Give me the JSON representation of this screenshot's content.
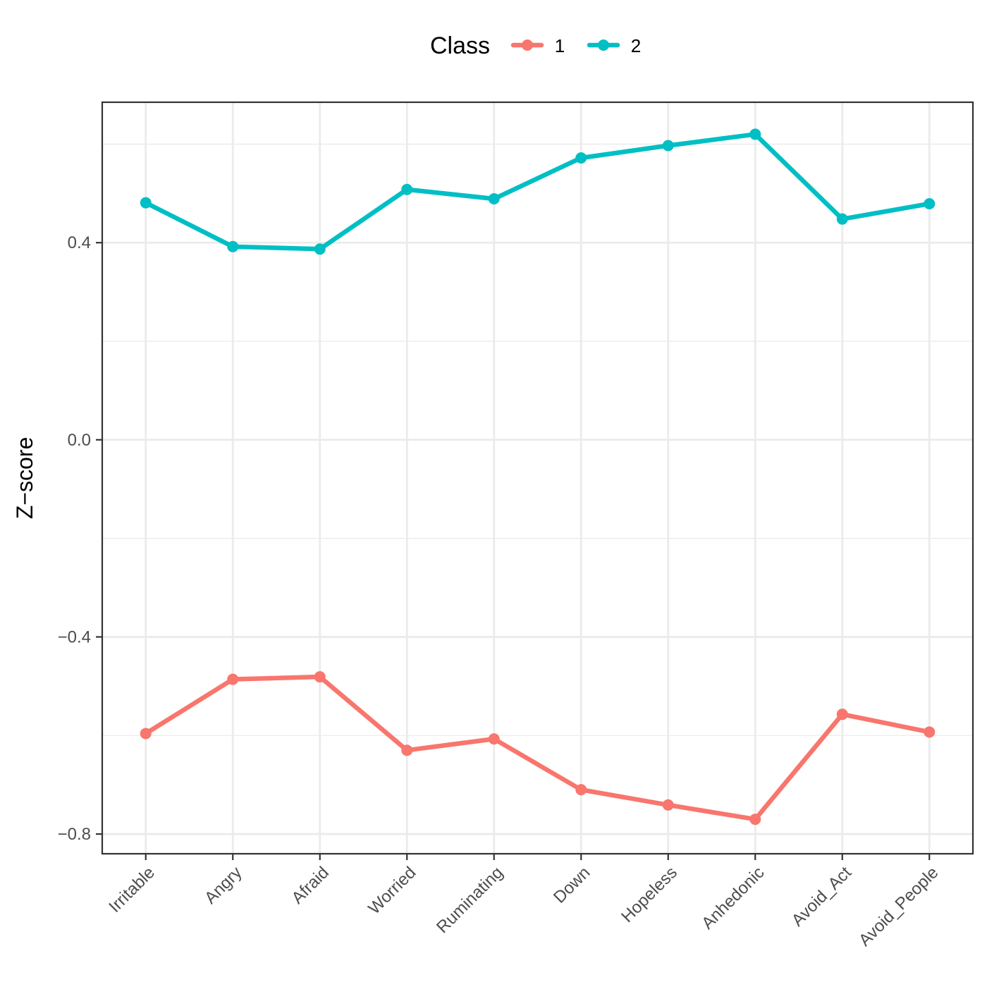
{
  "chart_data": {
    "type": "line",
    "categories": [
      "Irritable",
      "Angry",
      "Afraid",
      "Worried",
      "Ruminating",
      "Down",
      "Hopeless",
      "Anhedonic",
      "Avoid_Act",
      "Avoid_People"
    ],
    "series": [
      {
        "name": "1",
        "color": "#F8766D",
        "values": [
          -0.596,
          -0.486,
          -0.481,
          -0.63,
          -0.607,
          -0.71,
          -0.741,
          -0.77,
          -0.557,
          -0.593
        ]
      },
      {
        "name": "2",
        "color": "#00BFC4",
        "values": [
          0.481,
          0.392,
          0.387,
          0.508,
          0.489,
          0.572,
          0.597,
          0.62,
          0.448,
          0.479
        ]
      }
    ],
    "xlabel": "",
    "ylabel": "Z−score",
    "ylim": [
      -0.84,
      0.685
    ],
    "yticks": [
      -0.8,
      -0.4,
      0.0,
      0.4
    ],
    "ytick_labels": [
      "−0.8",
      "−0.4",
      "0.0",
      "0.4"
    ],
    "grid": true,
    "legend": {
      "title": "Class",
      "position": "top"
    }
  }
}
